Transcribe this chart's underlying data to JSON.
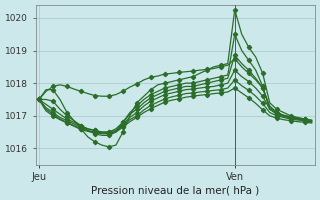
{
  "xlabel": "Pression niveau de la mer( hPa )",
  "ylim": [
    1015.5,
    1020.4
  ],
  "yticks": [
    1016,
    1017,
    1018,
    1019,
    1020
  ],
  "xtick_labels": [
    "Jeu",
    "Ven"
  ],
  "bg_color": "#cce8ea",
  "line_color": "#2a6e2a",
  "markersize": 2.2,
  "linewidth": 0.9,
  "n_points": 40,
  "ven_idx": 28,
  "lines": [
    [
      1017.5,
      1017.8,
      1017.8,
      1017.5,
      1017.1,
      1016.85,
      1016.6,
      1016.35,
      1016.2,
      1016.1,
      1016.05,
      1016.1,
      1016.5,
      1017.0,
      1017.4,
      1017.6,
      1017.8,
      1017.95,
      1018.0,
      1018.05,
      1018.1,
      1018.15,
      1018.2,
      1018.3,
      1018.4,
      1018.5,
      1018.55,
      1018.6,
      1020.25,
      1019.5,
      1019.1,
      1018.8,
      1018.3,
      1017.4,
      1017.2,
      1017.1,
      1017.0,
      1016.95,
      1016.9,
      1016.85
    ],
    [
      1017.5,
      1017.5,
      1017.45,
      1017.2,
      1017.0,
      1016.85,
      1016.7,
      1016.55,
      1016.45,
      1016.4,
      1016.4,
      1016.5,
      1016.8,
      1017.1,
      1017.3,
      1017.5,
      1017.65,
      1017.75,
      1017.85,
      1017.9,
      1017.95,
      1018.0,
      1018.0,
      1018.05,
      1018.1,
      1018.15,
      1018.2,
      1018.25,
      1019.5,
      1019.0,
      1018.7,
      1018.4,
      1017.9,
      1017.2,
      1017.1,
      1017.0,
      1016.95,
      1016.9,
      1016.85,
      1016.8
    ],
    [
      1017.5,
      1017.35,
      1017.2,
      1017.05,
      1016.9,
      1016.8,
      1016.7,
      1016.6,
      1016.55,
      1016.5,
      1016.5,
      1016.6,
      1016.8,
      1017.05,
      1017.2,
      1017.4,
      1017.55,
      1017.65,
      1017.75,
      1017.8,
      1017.85,
      1017.9,
      1017.9,
      1017.95,
      1018.0,
      1018.05,
      1018.1,
      1018.15,
      1018.85,
      1018.6,
      1018.4,
      1018.15,
      1017.85,
      1017.3,
      1017.1,
      1017.0,
      1016.95,
      1016.9,
      1016.85,
      1016.8
    ],
    [
      1017.5,
      1017.25,
      1017.1,
      1016.95,
      1016.85,
      1016.75,
      1016.65,
      1016.6,
      1016.55,
      1016.5,
      1016.5,
      1016.55,
      1016.75,
      1016.95,
      1017.1,
      1017.3,
      1017.45,
      1017.55,
      1017.65,
      1017.7,
      1017.75,
      1017.8,
      1017.82,
      1017.85,
      1017.88,
      1017.9,
      1017.95,
      1018.0,
      1018.4,
      1018.2,
      1018.05,
      1017.85,
      1017.6,
      1017.2,
      1017.05,
      1016.98,
      1016.93,
      1016.9,
      1016.87,
      1016.85
    ],
    [
      1017.5,
      1017.2,
      1017.05,
      1016.9,
      1016.8,
      1016.7,
      1016.6,
      1016.55,
      1016.5,
      1016.48,
      1016.47,
      1016.52,
      1016.7,
      1016.88,
      1017.0,
      1017.18,
      1017.32,
      1017.42,
      1017.52,
      1017.58,
      1017.63,
      1017.68,
      1017.7,
      1017.73,
      1017.75,
      1017.78,
      1017.8,
      1017.85,
      1018.1,
      1017.92,
      1017.78,
      1017.6,
      1017.38,
      1017.1,
      1017.0,
      1016.95,
      1016.9,
      1016.87,
      1016.85,
      1016.83
    ],
    [
      1017.5,
      1017.15,
      1017.0,
      1016.88,
      1016.78,
      1016.68,
      1016.58,
      1016.52,
      1016.48,
      1016.45,
      1016.45,
      1016.5,
      1016.65,
      1016.82,
      1016.95,
      1017.1,
      1017.22,
      1017.32,
      1017.42,
      1017.48,
      1017.52,
      1017.57,
      1017.6,
      1017.63,
      1017.65,
      1017.68,
      1017.7,
      1017.73,
      1017.85,
      1017.7,
      1017.55,
      1017.38,
      1017.18,
      1017.0,
      1016.93,
      1016.88,
      1016.85,
      1016.82,
      1016.8,
      1016.78
    ],
    [
      1017.5,
      1017.75,
      1017.9,
      1017.95,
      1017.9,
      1017.82,
      1017.75,
      1017.68,
      1017.62,
      1017.6,
      1017.6,
      1017.65,
      1017.75,
      1017.88,
      1017.98,
      1018.1,
      1018.18,
      1018.22,
      1018.28,
      1018.3,
      1018.33,
      1018.35,
      1018.37,
      1018.4,
      1018.42,
      1018.45,
      1018.5,
      1018.55,
      1018.75,
      1018.5,
      1018.3,
      1018.1,
      1017.85,
      1017.25,
      1017.1,
      1017.02,
      1016.97,
      1016.93,
      1016.9,
      1016.87
    ]
  ]
}
